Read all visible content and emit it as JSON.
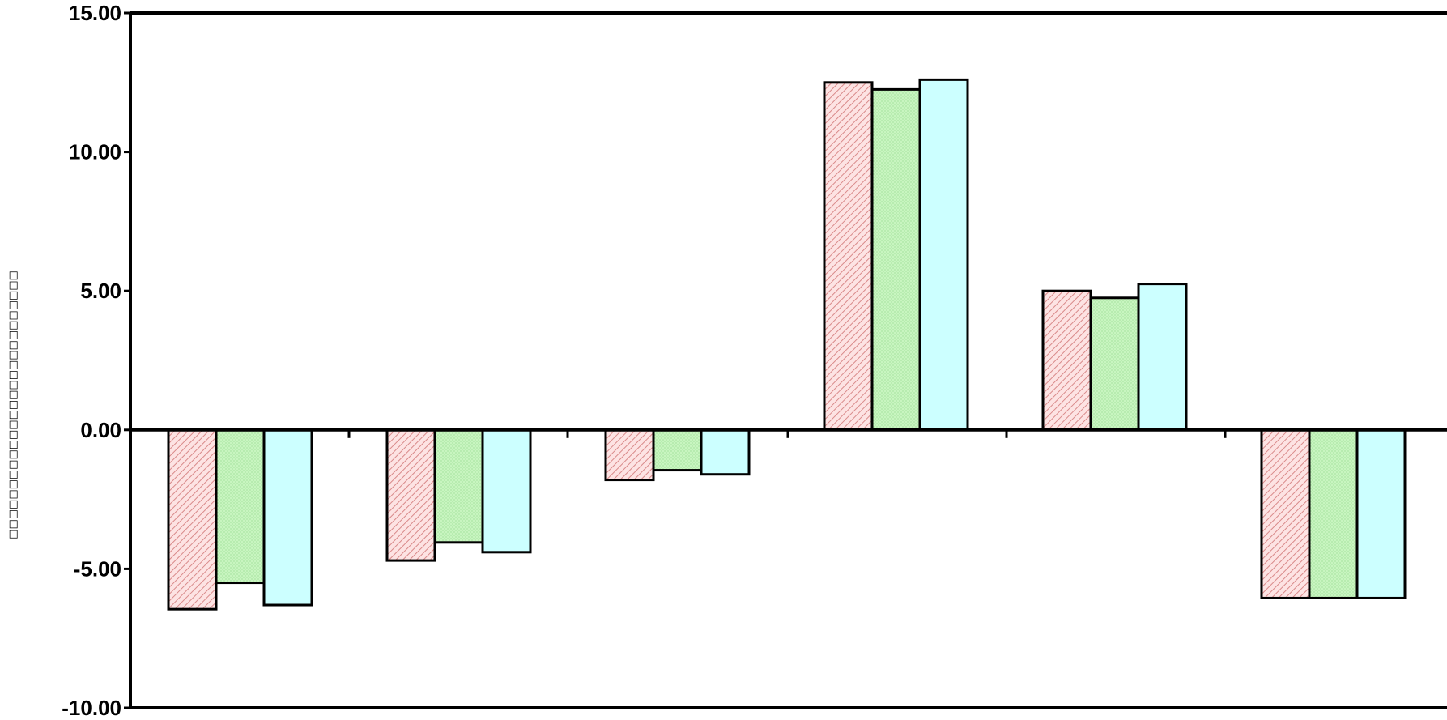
{
  "chart_data": {
    "type": "bar",
    "title": "",
    "xlabel": "",
    "ylabel": "□□□□□□□□□□□□□□□□□□□□□□□□□□□",
    "ylim": [
      -10,
      15
    ],
    "yticks": [
      15,
      10,
      5,
      0,
      -5,
      -10
    ],
    "ytick_labels": [
      "15.00",
      "10.00",
      "5.00",
      "0.00",
      "-5.00",
      "-10.00"
    ],
    "categories": [
      "",
      "",
      "",
      "",
      "",
      ""
    ],
    "grid": false,
    "legend": "none",
    "series": [
      {
        "color": "#f4b7b7",
        "pattern": "diagonal-hatch",
        "values": [
          -6.45,
          -4.7,
          -1.8,
          12.5,
          5.0,
          -6.05
        ]
      },
      {
        "color": "#c8f5c0",
        "pattern": "dots",
        "values": [
          -5.5,
          -4.05,
          -1.45,
          12.25,
          4.75,
          -6.05
        ]
      },
      {
        "color": "#ccffff",
        "pattern": "solid",
        "values": [
          -6.3,
          -4.4,
          -1.6,
          12.6,
          5.25,
          -6.05
        ]
      }
    ]
  }
}
